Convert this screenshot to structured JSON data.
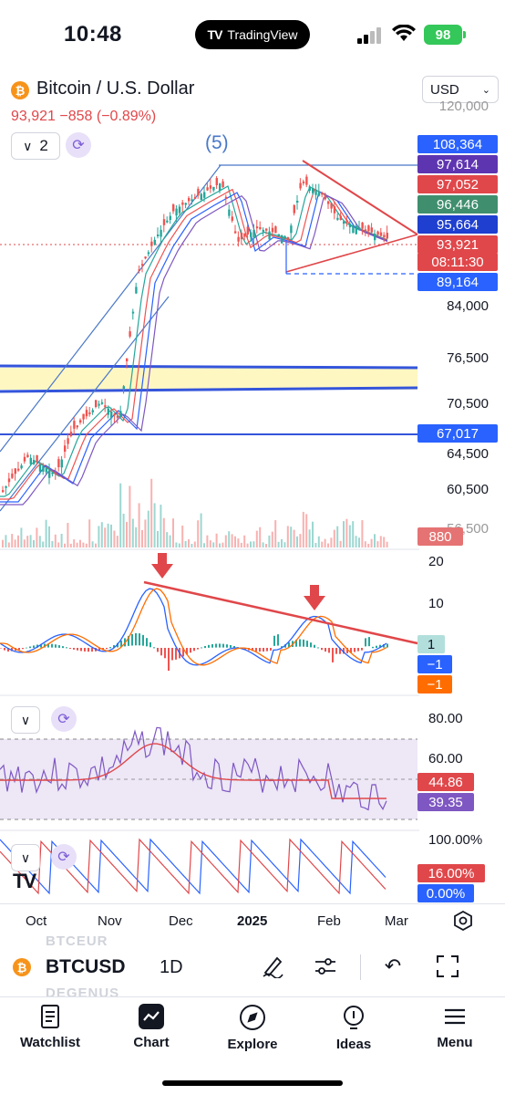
{
  "status_bar": {
    "time": "10:48",
    "app_pill": "TradingView",
    "battery": "98"
  },
  "header": {
    "title": "Bitcoin / U.S. Dollar",
    "price_line": "93,921 −858 (−0.89%)",
    "currency": "USD",
    "indicator_count": "2",
    "wave_label": "(5)"
  },
  "colors": {
    "up": "#26a69a",
    "down": "#ef5350",
    "blue": "#2962ff",
    "purple": "#6a3fb5",
    "tag_red": "#e0474a"
  },
  "price_tags": [
    {
      "value": "108,364",
      "color": "#2962ff"
    },
    {
      "value": "97,614",
      "color": "#5e35b1"
    },
    {
      "value": "97,052",
      "color": "#e0474a"
    },
    {
      "value": "96,446",
      "color": "#3f8f6e"
    },
    {
      "value": "95,664",
      "color": "#1e3fcf"
    },
    {
      "value": "93,921",
      "color": "#e0474a"
    },
    {
      "value": "08:11:30",
      "color": "#e0474a"
    },
    {
      "value": "89,164",
      "color": "#2962ff"
    },
    {
      "value": "67,017",
      "color": "#2962ff"
    },
    {
      "value": "880",
      "color": "#e57373"
    }
  ],
  "price_axis": [
    "120,000",
    "84,000",
    "76,500",
    "70,500",
    "64,500",
    "60,500",
    "56,500"
  ],
  "macd": {
    "axis": [
      "20",
      "10"
    ],
    "tags": [
      "1",
      "−1",
      "−1"
    ]
  },
  "rsi": {
    "axis": [
      "80.00",
      "60.00"
    ],
    "tags": [
      "44.86",
      "39.35"
    ]
  },
  "stoch": {
    "axis": [
      "100.00%"
    ],
    "tags": [
      "16.00%",
      "0.00%"
    ]
  },
  "time_axis": [
    "Oct",
    "Nov",
    "Dec",
    "2025",
    "Feb",
    "Mar"
  ],
  "bottom_bar": {
    "symbol": "BTCUSD",
    "interval": "1D",
    "ghost_top": "BTCEUR",
    "ghost_bottom": "DEGENUS"
  },
  "tabs": [
    {
      "label": "Watchlist",
      "icon": "watchlist-icon"
    },
    {
      "label": "Chart",
      "icon": "chart-icon"
    },
    {
      "label": "Explore",
      "icon": "compass-icon"
    },
    {
      "label": "Ideas",
      "icon": "lightbulb-icon"
    },
    {
      "label": "Menu",
      "icon": "menu-icon"
    }
  ]
}
